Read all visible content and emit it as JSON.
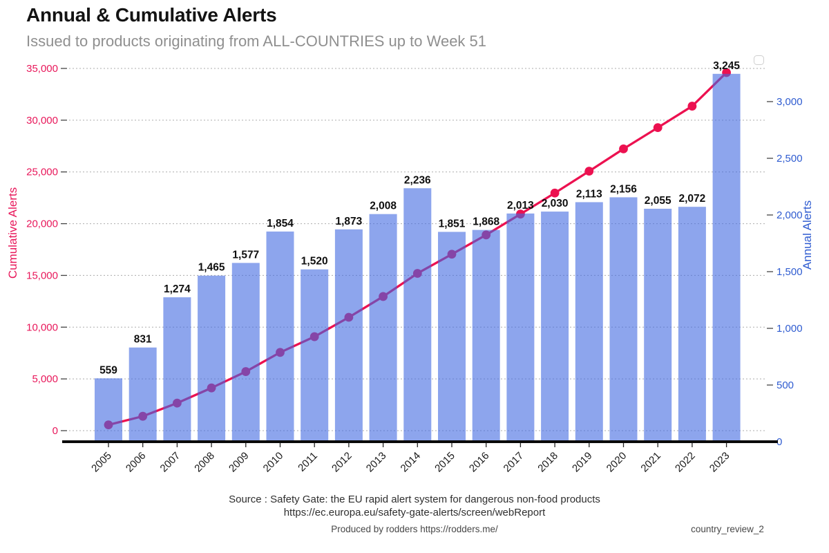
{
  "header": {
    "title": "Annual & Cumulative Alerts",
    "subtitle": "Issued to products originating from ALL-COUNTRIES up to Week 51"
  },
  "footer": {
    "source_line1": "Source : Safety Gate: the EU rapid alert system for dangerous non-food products",
    "source_line2": "https://ec.europa.eu/safety-gate-alerts/screen/webReport",
    "produced_by": "Produced by rodders https://rodders.me/",
    "doc_ref": "country_review_2"
  },
  "chart_data": {
    "type": "bar",
    "subtype": "bar+line dual-axis combo",
    "categories": [
      "2005",
      "2006",
      "2007",
      "2008",
      "2009",
      "2010",
      "2011",
      "2012",
      "2013",
      "2014",
      "2015",
      "2016",
      "2017",
      "2018",
      "2019",
      "2020",
      "2021",
      "2022",
      "2023"
    ],
    "series": [
      {
        "name": "Annual Alerts",
        "type": "bar",
        "axis": "right",
        "color": "#4169E1",
        "opacity": 0.6,
        "values": [
          559,
          831,
          1274,
          1465,
          1577,
          1854,
          1520,
          1873,
          2008,
          2236,
          1851,
          1868,
          2013,
          2030,
          2113,
          2156,
          2055,
          2072,
          3245
        ]
      },
      {
        "name": "Cumulative Alerts",
        "type": "line",
        "axis": "left",
        "color": "#EC1150",
        "marker": "circle",
        "values": [
          559,
          1390,
          2664,
          4129,
          5706,
          7560,
          9080,
          10953,
          12961,
          15197,
          17048,
          18916,
          20929,
          22959,
          25072,
          27228,
          29283,
          31355,
          34600
        ]
      }
    ],
    "left_axis": {
      "label": "Cumulative Alerts",
      "color": "#E8175A",
      "min": 0,
      "max": 35000,
      "tick_step": 5000
    },
    "right_axis": {
      "label": "Annual Alerts",
      "color": "#2E5BD0",
      "min": 0,
      "max": 3000,
      "tick_step": 500
    },
    "x_axis": {
      "tick_rotation": -45,
      "tick_color": "#1a1a1a"
    },
    "bar_value_labels": true,
    "grid": "horizontal dashed, from left axis",
    "gridline_color": "#ababab",
    "legend": "none",
    "axis_line_color": "#0a0a0a"
  }
}
